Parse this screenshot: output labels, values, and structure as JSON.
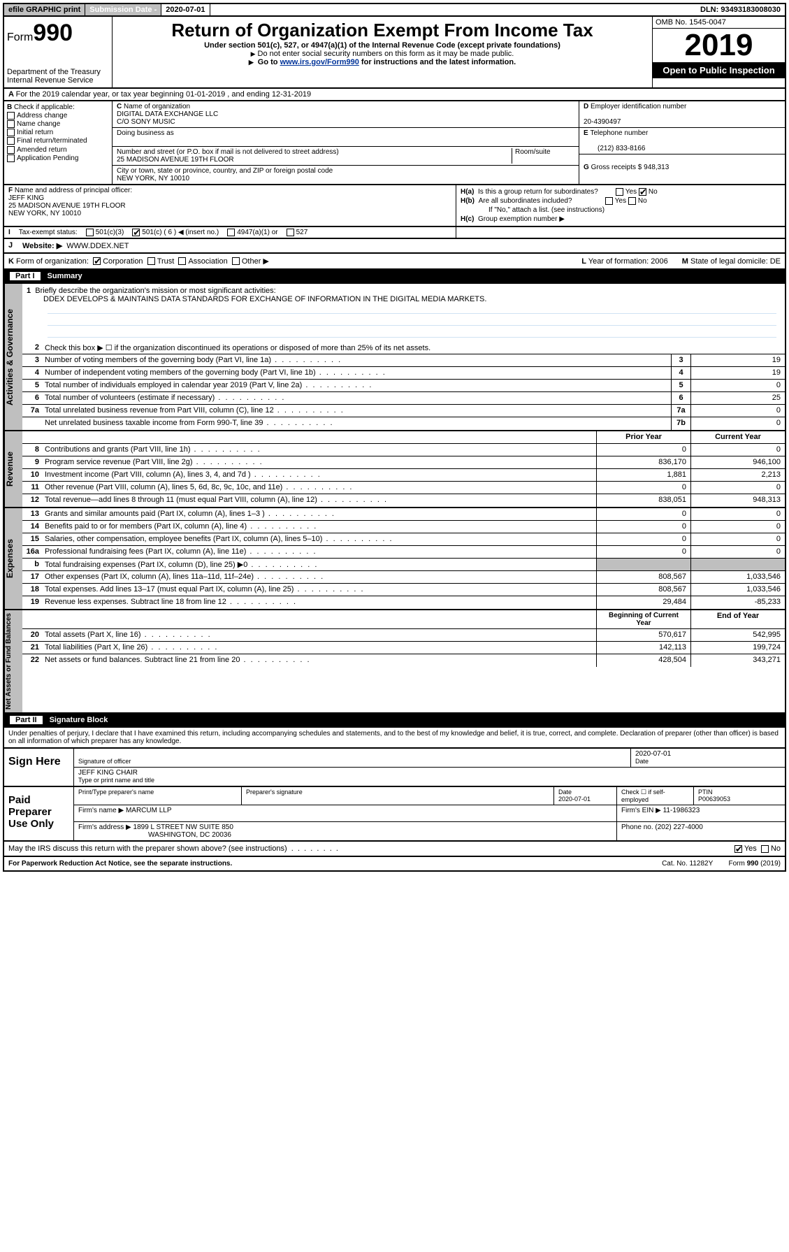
{
  "topbar": {
    "efile": "efile GRAPHIC print",
    "subdate_label": "Submission Date - ",
    "subdate": "2020-07-01",
    "dln": "DLN: 93493183008030"
  },
  "header": {
    "form_prefix": "Form",
    "form_no": "990",
    "dept1": "Department of the Treasury",
    "dept2": "Internal Revenue Service",
    "title": "Return of Organization Exempt From Income Tax",
    "sub1": "Under section 501(c), 527, or 4947(a)(1) of the Internal Revenue Code (except private foundations)",
    "sub2": "Do not enter social security numbers on this form as it may be made public.",
    "sub3a": "Go to ",
    "sub3link": "www.irs.gov/Form990",
    "sub3b": " for instructions and the latest information.",
    "omb": "OMB No. 1545-0047",
    "year": "2019",
    "openpub": "Open to Public Inspection"
  },
  "A": {
    "text": "For the 2019 calendar year, or tax year beginning 01-01-2019 , and ending 12-31-2019"
  },
  "B": {
    "label": "Check if applicable:",
    "opts": [
      "Address change",
      "Name change",
      "Initial return",
      "Final return/terminated",
      "Amended return",
      "Application Pending"
    ]
  },
  "C": {
    "name_label": "Name of organization",
    "name1": "DIGITAL DATA EXCHANGE LLC",
    "name2": "C/O SONY MUSIC",
    "dba_label": "Doing business as",
    "addr_label": "Number and street (or P.O. box if mail is not delivered to street address)",
    "room_label": "Room/suite",
    "addr": "25 MADISON AVENUE 19TH FLOOR",
    "city_label": "City or town, state or province, country, and ZIP or foreign postal code",
    "city": "NEW YORK, NY  10010"
  },
  "D": {
    "label": "Employer identification number",
    "val": "20-4390497"
  },
  "E": {
    "label": "Telephone number",
    "val": "(212) 833-8166"
  },
  "G": {
    "label": "Gross receipts $",
    "val": "948,313"
  },
  "F": {
    "label": "Name and address of principal officer:",
    "name": "JEFF KING",
    "addr1": "25 MADISON AVENUE 19TH FLOOR",
    "addr2": "NEW YORK, NY  10010"
  },
  "H": {
    "a": "Is this a group return for subordinates?",
    "b": "Are all subordinates included?",
    "bnote": "If \"No,\" attach a list. (see instructions)",
    "c": "Group exemption number ▶"
  },
  "I": {
    "label": "Tax-exempt status:",
    "opts": [
      "501(c)(3)",
      "501(c) ( 6 ) ◀ (insert no.)",
      "4947(a)(1) or",
      "527"
    ],
    "checked": 1
  },
  "J": {
    "label": "Website: ▶",
    "val": "WWW.DDEX.NET"
  },
  "K": {
    "label": "Form of organization:",
    "opts": [
      "Corporation",
      "Trust",
      "Association",
      "Other ▶"
    ],
    "checked": 0,
    "L": "Year of formation: 2006",
    "M": "State of legal domicile: DE"
  },
  "partI": {
    "num": "Part I",
    "title": "Summary"
  },
  "sum": {
    "q1": "Briefly describe the organization's mission or most significant activities:",
    "q1a": "DDEX DEVELOPS & MAINTAINS DATA STANDARDS FOR EXCHANGE OF INFORMATION IN THE DIGITAL MEDIA MARKETS.",
    "q2": "Check this box ▶ ☐ if the organization discontinued its operations or disposed of more than 25% of its net assets.",
    "rows_a": [
      {
        "n": "3",
        "t": "Number of voting members of the governing body (Part VI, line 1a)",
        "bn": "3",
        "v": "19"
      },
      {
        "n": "4",
        "t": "Number of independent voting members of the governing body (Part VI, line 1b)",
        "bn": "4",
        "v": "19"
      },
      {
        "n": "5",
        "t": "Total number of individuals employed in calendar year 2019 (Part V, line 2a)",
        "bn": "5",
        "v": "0"
      },
      {
        "n": "6",
        "t": "Total number of volunteers (estimate if necessary)",
        "bn": "6",
        "v": "25"
      },
      {
        "n": "7a",
        "t": "Total unrelated business revenue from Part VIII, column (C), line 12",
        "bn": "7a",
        "v": "0"
      },
      {
        "n": "",
        "t": "Net unrelated business taxable income from Form 990-T, line 39",
        "bn": "7b",
        "v": "0"
      }
    ],
    "hdr_rev": {
      "v1": "Prior Year",
      "v2": "Current Year"
    },
    "rows_rev": [
      {
        "n": "8",
        "t": "Contributions and grants (Part VIII, line 1h)",
        "v1": "0",
        "v2": "0"
      },
      {
        "n": "9",
        "t": "Program service revenue (Part VIII, line 2g)",
        "v1": "836,170",
        "v2": "946,100"
      },
      {
        "n": "10",
        "t": "Investment income (Part VIII, column (A), lines 3, 4, and 7d )",
        "v1": "1,881",
        "v2": "2,213"
      },
      {
        "n": "11",
        "t": "Other revenue (Part VIII, column (A), lines 5, 6d, 8c, 9c, 10c, and 11e)",
        "v1": "0",
        "v2": "0"
      },
      {
        "n": "12",
        "t": "Total revenue—add lines 8 through 11 (must equal Part VIII, column (A), line 12)",
        "v1": "838,051",
        "v2": "948,313"
      }
    ],
    "rows_exp": [
      {
        "n": "13",
        "t": "Grants and similar amounts paid (Part IX, column (A), lines 1–3 )",
        "v1": "0",
        "v2": "0"
      },
      {
        "n": "14",
        "t": "Benefits paid to or for members (Part IX, column (A), line 4)",
        "v1": "0",
        "v2": "0"
      },
      {
        "n": "15",
        "t": "Salaries, other compensation, employee benefits (Part IX, column (A), lines 5–10)",
        "v1": "0",
        "v2": "0"
      },
      {
        "n": "16a",
        "t": "Professional fundraising fees (Part IX, column (A), line 11e)",
        "v1": "0",
        "v2": "0"
      },
      {
        "n": "b",
        "t": "Total fundraising expenses (Part IX, column (D), line 25) ▶0",
        "v1": "",
        "v2": "",
        "gray": true
      },
      {
        "n": "17",
        "t": "Other expenses (Part IX, column (A), lines 11a–11d, 11f–24e)",
        "v1": "808,567",
        "v2": "1,033,546"
      },
      {
        "n": "18",
        "t": "Total expenses. Add lines 13–17 (must equal Part IX, column (A), line 25)",
        "v1": "808,567",
        "v2": "1,033,546"
      },
      {
        "n": "19",
        "t": "Revenue less expenses. Subtract line 18 from line 12",
        "v1": "29,484",
        "v2": "-85,233"
      }
    ],
    "hdr_na": {
      "v1": "Beginning of Current Year",
      "v2": "End of Year"
    },
    "rows_na": [
      {
        "n": "20",
        "t": "Total assets (Part X, line 16)",
        "v1": "570,617",
        "v2": "542,995"
      },
      {
        "n": "21",
        "t": "Total liabilities (Part X, line 26)",
        "v1": "142,113",
        "v2": "199,724"
      },
      {
        "n": "22",
        "t": "Net assets or fund balances. Subtract line 21 from line 20",
        "v1": "428,504",
        "v2": "343,271"
      }
    ]
  },
  "sidelabs": {
    "gov": "Activities & Governance",
    "rev": "Revenue",
    "exp": "Expenses",
    "na": "Net Assets or Fund Balances"
  },
  "partII": {
    "num": "Part II",
    "title": "Signature Block"
  },
  "perjury": "Under penalties of perjury, I declare that I have examined this return, including accompanying schedules and statements, and to the best of my knowledge and belief, it is true, correct, and complete. Declaration of preparer (other than officer) is based on all information of which preparer has any knowledge.",
  "sign": {
    "side": "Sign Here",
    "sig_label": "Signature of officer",
    "date": "2020-07-01",
    "date_label": "Date",
    "name": "JEFF KING CHAIR",
    "name_label": "Type or print name and title"
  },
  "paid": {
    "side": "Paid Preparer Use Only",
    "h1": "Print/Type preparer's name",
    "h2": "Preparer's signature",
    "h3": "Date",
    "h3v": "2020-07-01",
    "h4": "Check ☐ if self-employed",
    "h5": "PTIN",
    "h5v": "P00639053",
    "firm_label": "Firm's name    ▶",
    "firm": "MARCUM LLP",
    "ein_label": "Firm's EIN ▶",
    "ein": "11-1986323",
    "addr_label": "Firm's address ▶",
    "addr1": "1899 L STREET NW SUITE 850",
    "addr2": "WASHINGTON, DC  20036",
    "phone_label": "Phone no.",
    "phone": "(202) 227-4000"
  },
  "discuss": "May the IRS discuss this return with the preparer shown above? (see instructions)",
  "footer": {
    "pra": "For Paperwork Reduction Act Notice, see the separate instructions.",
    "cat": "Cat. No. 11282Y",
    "form": "Form 990 (2019)"
  },
  "yes": "Yes",
  "no": "No"
}
